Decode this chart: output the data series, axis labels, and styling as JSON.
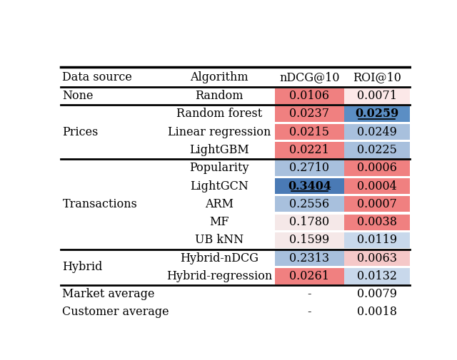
{
  "columns": [
    "Data source",
    "Algorithm",
    "nDCG@10",
    "ROI@10"
  ],
  "rows": [
    {
      "data_source": "None",
      "algorithm": "Random",
      "ndcg": "0.0106",
      "roi": "0.0071",
      "ndcg_color": "#f08080",
      "roi_color": "#fce8e8",
      "ndcg_bold": false,
      "ndcg_underline": false,
      "roi_bold": false,
      "roi_underline": false
    },
    {
      "data_source": "Prices",
      "algorithm": "Random forest",
      "ndcg": "0.0237",
      "roi": "0.0259",
      "ndcg_color": "#f08080",
      "roi_color": "#5b8ec4",
      "ndcg_bold": false,
      "ndcg_underline": false,
      "roi_bold": true,
      "roi_underline": true
    },
    {
      "data_source": "",
      "algorithm": "Linear regression",
      "ndcg": "0.0215",
      "roi": "0.0249",
      "ndcg_color": "#f08080",
      "roi_color": "#a8c0dd",
      "ndcg_bold": false,
      "ndcg_underline": false,
      "roi_bold": false,
      "roi_underline": false
    },
    {
      "data_source": "",
      "algorithm": "LightGBM",
      "ndcg": "0.0221",
      "roi": "0.0225",
      "ndcg_color": "#f08080",
      "roi_color": "#a8c0dd",
      "ndcg_bold": false,
      "ndcg_underline": false,
      "roi_bold": false,
      "roi_underline": false
    },
    {
      "data_source": "Transactions",
      "algorithm": "Popularity",
      "ndcg": "0.2710",
      "roi": "0.0006",
      "ndcg_color": "#a8c0dd",
      "roi_color": "#f08080",
      "ndcg_bold": false,
      "ndcg_underline": false,
      "roi_bold": false,
      "roi_underline": false
    },
    {
      "data_source": "",
      "algorithm": "LightGCN",
      "ndcg": "0.3404",
      "roi": "0.0004",
      "ndcg_color": "#4a7ab5",
      "roi_color": "#f08080",
      "ndcg_bold": true,
      "ndcg_underline": true,
      "roi_bold": false,
      "roi_underline": false
    },
    {
      "data_source": "",
      "algorithm": "ARM",
      "ndcg": "0.2556",
      "roi": "0.0007",
      "ndcg_color": "#a8c0dd",
      "roi_color": "#f08080",
      "ndcg_bold": false,
      "ndcg_underline": false,
      "roi_bold": false,
      "roi_underline": false
    },
    {
      "data_source": "",
      "algorithm": "MF",
      "ndcg": "0.1780",
      "roi": "0.0038",
      "ndcg_color": "#f5e8e8",
      "roi_color": "#f08080",
      "ndcg_bold": false,
      "ndcg_underline": false,
      "roi_bold": false,
      "roi_underline": false
    },
    {
      "data_source": "",
      "algorithm": "UB kNN",
      "ndcg": "0.1599",
      "roi": "0.0119",
      "ndcg_color": "#f5e8e8",
      "roi_color": "#c8d8eb",
      "ndcg_bold": false,
      "ndcg_underline": false,
      "roi_bold": false,
      "roi_underline": false
    },
    {
      "data_source": "Hybrid",
      "algorithm": "Hybrid-nDCG",
      "ndcg": "0.2313",
      "roi": "0.0063",
      "ndcg_color": "#a8c0dd",
      "roi_color": "#f5c8c8",
      "ndcg_bold": false,
      "ndcg_underline": false,
      "roi_bold": false,
      "roi_underline": false
    },
    {
      "data_source": "",
      "algorithm": "Hybrid-regression",
      "ndcg": "0.0261",
      "roi": "0.0132",
      "ndcg_color": "#f08080",
      "roi_color": "#c8d8eb",
      "ndcg_bold": false,
      "ndcg_underline": false,
      "roi_bold": false,
      "roi_underline": false
    },
    {
      "data_source": "Market average",
      "algorithm": null,
      "ndcg": "-",
      "roi": "0.0079",
      "ndcg_color": null,
      "roi_color": null,
      "ndcg_bold": false,
      "ndcg_underline": false,
      "roi_bold": false,
      "roi_underline": false
    },
    {
      "data_source": "Customer average",
      "algorithm": null,
      "ndcg": "-",
      "roi": "0.0018",
      "ndcg_color": null,
      "roi_color": null,
      "ndcg_bold": false,
      "ndcg_underline": false,
      "roi_bold": false,
      "roi_underline": false
    }
  ],
  "group_ranges": [
    [
      0,
      0
    ],
    [
      1,
      3
    ],
    [
      4,
      8
    ],
    [
      9,
      10
    ],
    [
      11,
      12
    ]
  ],
  "group_labels": [
    "None",
    "Prices",
    "Transactions",
    "Hybrid",
    null
  ],
  "separator_after_rows": [
    0,
    3,
    8,
    10,
    12
  ],
  "background_color": "#ffffff",
  "font_size": 11.5
}
